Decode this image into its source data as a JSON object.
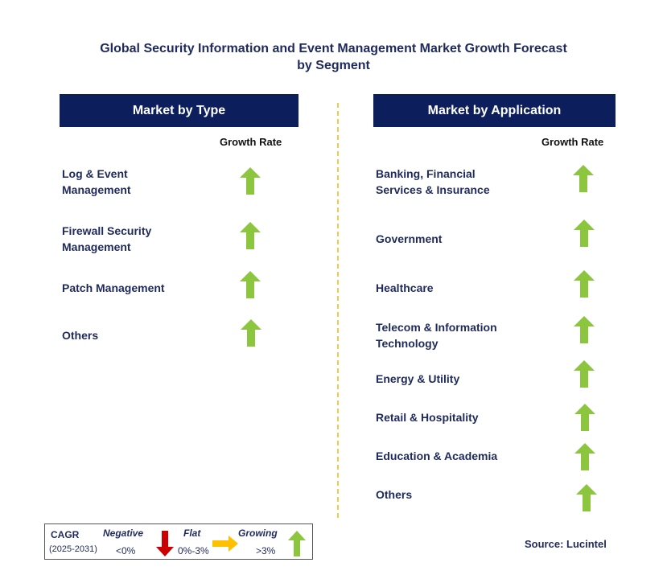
{
  "title_line1": "Global Security Information and Event Management Market Growth Forecast",
  "title_line2": "by Segment",
  "type_panel": {
    "header": "Market by Type",
    "growth_label": "Growth Rate",
    "items": [
      {
        "line1": "Log & Event",
        "line2": "Management",
        "trend": "growing"
      },
      {
        "line1": "Firewall Security",
        "line2": "Management",
        "trend": "growing"
      },
      {
        "line1": "Patch Management",
        "line2": "",
        "trend": "growing"
      },
      {
        "line1": "Others",
        "line2": "",
        "trend": "growing"
      }
    ]
  },
  "application_panel": {
    "header": "Market by Application",
    "growth_label": "Growth Rate",
    "items": [
      {
        "line1": "Banking, Financial",
        "line2": "Services & Insurance",
        "trend": "growing"
      },
      {
        "line1": "Government",
        "line2": "",
        "trend": "growing"
      },
      {
        "line1": "Healthcare",
        "line2": "",
        "trend": "growing"
      },
      {
        "line1": "Telecom & Information",
        "line2": "Technology",
        "trend": "growing"
      },
      {
        "line1": "Energy & Utility",
        "line2": "",
        "trend": "growing"
      },
      {
        "line1": "Retail & Hospitality",
        "line2": "",
        "trend": "growing"
      },
      {
        "line1": "Education & Academia",
        "line2": "",
        "trend": "growing"
      },
      {
        "line1": "Others",
        "line2": "",
        "trend": "growing"
      }
    ]
  },
  "legend": {
    "cagr": "CAGR",
    "period": "(2025-2031)",
    "negative_label": "Negative",
    "negative_range": "<0%",
    "flat_label": "Flat",
    "flat_range": "0%-3%",
    "growing_label": "Growing",
    "growing_range": ">3%"
  },
  "source": "Source: Lucintel",
  "colors": {
    "header_bg": "#0c1f5c",
    "title_text": "#1f2a5c",
    "growing_arrow": "#8cc63f",
    "negative_arrow": "#cc0000",
    "flat_arrow": "#ffc000",
    "divider": "#f2c94c"
  }
}
